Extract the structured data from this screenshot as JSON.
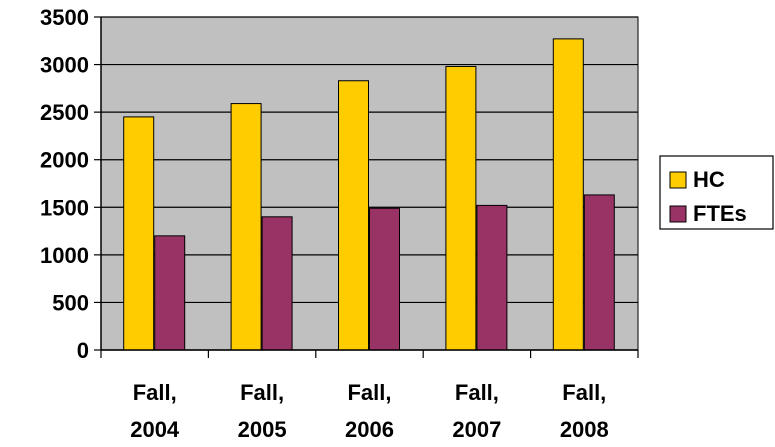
{
  "chart_data": {
    "type": "bar",
    "title": "",
    "xlabel": "",
    "ylabel": "",
    "categories": [
      [
        "Fall,",
        "2004"
      ],
      [
        "Fall,",
        "2005"
      ],
      [
        "Fall,",
        "2006"
      ],
      [
        "Fall,",
        "2007"
      ],
      [
        "Fall,",
        "2008"
      ]
    ],
    "series": [
      {
        "name": "HC",
        "color": "#FFCC00",
        "values": [
          2450,
          2590,
          2830,
          2980,
          3270
        ]
      },
      {
        "name": "FTEs",
        "color": "#993366",
        "values": [
          1200,
          1400,
          1490,
          1520,
          1630
        ]
      }
    ],
    "ylim": [
      0,
      3500
    ],
    "yticks": [
      0,
      500,
      1000,
      1500,
      2000,
      2500,
      3000,
      3500
    ],
    "grid": true,
    "plot_background": "#C0C0C0",
    "legend_position": "right"
  }
}
